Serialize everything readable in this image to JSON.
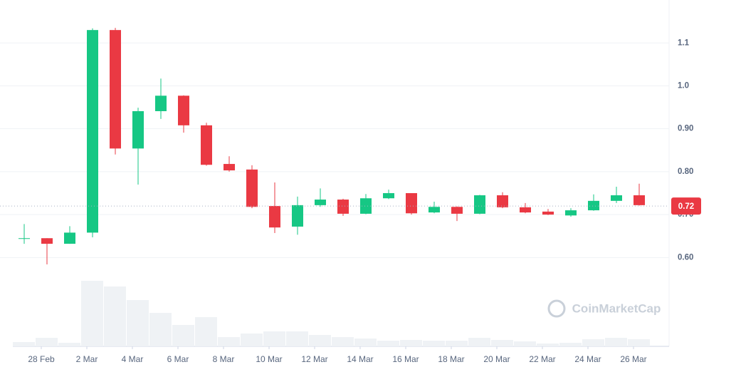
{
  "chart_data": {
    "type": "candlestick",
    "categories": [
      null,
      "28 Feb",
      null,
      "2 Mar",
      null,
      "4 Mar",
      null,
      "6 Mar",
      null,
      "8 Mar",
      null,
      "10 Mar",
      null,
      "12 Mar",
      null,
      "14 Mar",
      null,
      "16 Mar",
      null,
      "18 Mar",
      null,
      "20 Mar",
      null,
      "22 Mar",
      null,
      "24 Mar",
      null,
      "26 Mar"
    ],
    "open": [
      0.644,
      0.645,
      0.632,
      0.658,
      1.13,
      0.854,
      0.941,
      0.977,
      0.908,
      0.818,
      0.805,
      0.72,
      0.672,
      0.722,
      0.735,
      0.702,
      0.738,
      0.75,
      0.705,
      0.718,
      0.702,
      0.745,
      0.717,
      0.707,
      0.698,
      0.71,
      0.732,
      0.745
    ],
    "high": [
      0.678,
      0.645,
      0.673,
      1.134,
      1.135,
      0.949,
      1.017,
      0.978,
      0.914,
      0.836,
      0.815,
      0.775,
      0.742,
      0.761,
      0.737,
      0.748,
      0.758,
      0.75,
      0.73,
      0.719,
      0.746,
      0.752,
      0.727,
      0.713,
      0.715,
      0.747,
      0.765,
      0.772
    ],
    "low": [
      0.632,
      0.584,
      0.632,
      0.647,
      0.84,
      0.77,
      0.923,
      0.891,
      0.814,
      0.8,
      0.715,
      0.657,
      0.653,
      0.718,
      0.697,
      0.701,
      0.736,
      0.7,
      0.703,
      0.685,
      0.701,
      0.715,
      0.703,
      0.699,
      0.695,
      0.709,
      0.727,
      0.721
    ],
    "close": [
      0.645,
      0.632,
      0.658,
      1.13,
      0.854,
      0.941,
      0.977,
      0.908,
      0.816,
      0.803,
      0.718,
      0.67,
      0.722,
      0.735,
      0.702,
      0.738,
      0.75,
      0.703,
      0.718,
      0.702,
      0.745,
      0.717,
      0.705,
      0.7,
      0.71,
      0.732,
      0.745,
      0.722
    ],
    "volume": [
      6,
      12,
      5,
      92,
      84,
      65,
      47,
      30,
      41,
      13,
      18,
      21,
      21,
      16,
      13,
      11,
      8,
      9,
      8,
      8,
      12,
      9,
      7,
      4,
      5,
      10,
      12,
      10
    ],
    "up_color": "#16c784",
    "down_color": "#ea3943",
    "volume_color": "#eff2f5",
    "ylim": [
      0.393,
      1.2
    ],
    "yticks": [
      {
        "value": 0.6,
        "label": "0.60"
      },
      {
        "value": 0.7,
        "label": "0.70"
      },
      {
        "value": 0.8,
        "label": "0.80"
      },
      {
        "value": 0.9,
        "label": "0.90"
      },
      {
        "value": 1,
        "label": "1.0"
      },
      1.1
    ],
    "grid": true,
    "last_price": 0.72,
    "watermark": "CoinMarketCap"
  }
}
